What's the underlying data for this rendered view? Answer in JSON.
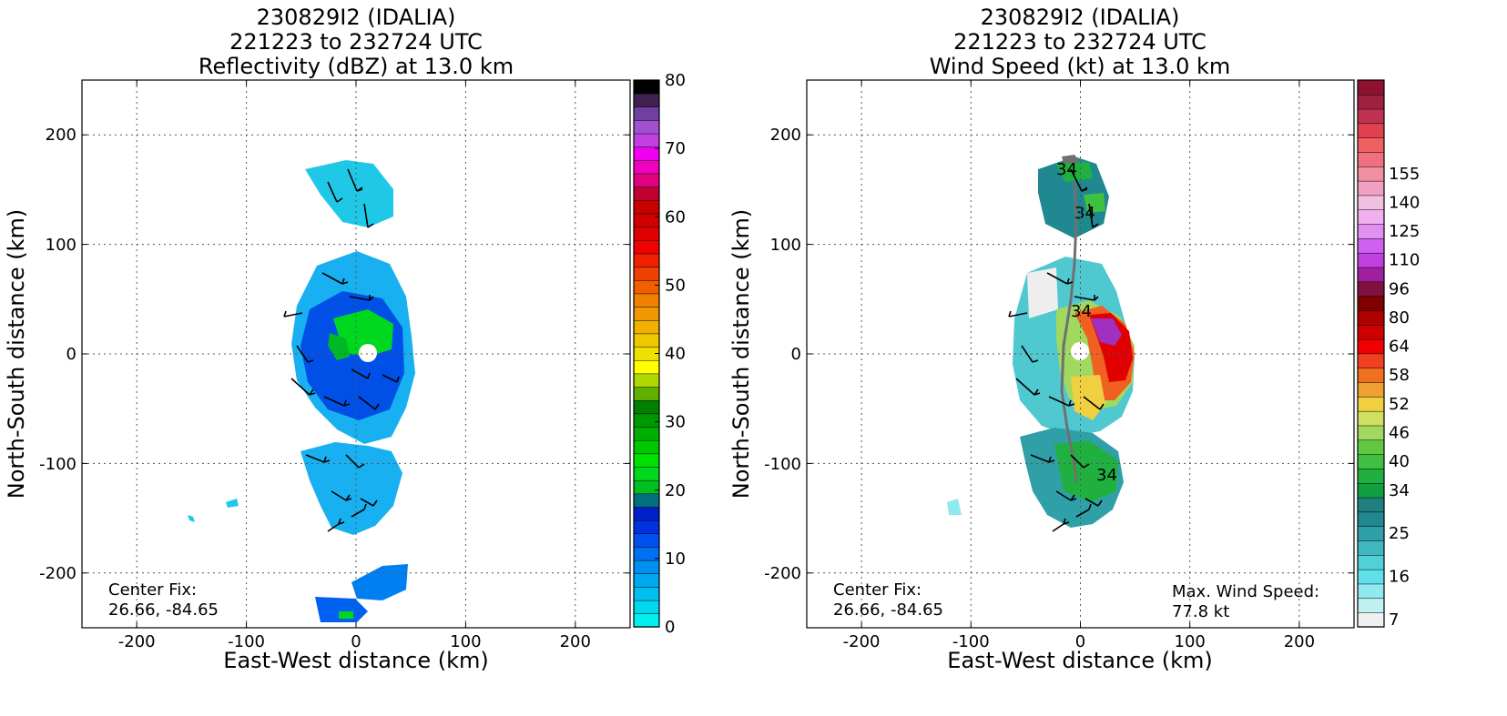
{
  "chart_data": [
    {
      "type": "heatmap",
      "title_lines": [
        "230829I2 (IDALIA)",
        "221223 to 232724 UTC",
        "Reflectivity (dBZ) at 13.0 km"
      ],
      "xlabel": "East-West distance (km)",
      "ylabel": "North-South distance (km)",
      "xlim": [
        -250,
        250
      ],
      "ylim": [
        -250,
        250
      ],
      "xticks": [
        -200,
        -100,
        0,
        100,
        200
      ],
      "yticks": [
        -200,
        -100,
        0,
        100,
        200
      ],
      "grid": true,
      "colorbar": {
        "min": 0,
        "max": 80,
        "tick_values": [
          0,
          10,
          20,
          30,
          40,
          50,
          60,
          70,
          80
        ],
        "colors": [
          "#00f0f0",
          "#00d8f0",
          "#00c0f0",
          "#00a8f0",
          "#0090f0",
          "#0070f0",
          "#0050f0",
          "#0030e0",
          "#0020c8",
          "#007080",
          "#00c020",
          "#00d820",
          "#00e000",
          "#00c800",
          "#00b000",
          "#009800",
          "#008000",
          "#60b000",
          "#b0d800",
          "#ffff00",
          "#f0e000",
          "#f0c800",
          "#f0b000",
          "#f09800",
          "#f08000",
          "#f06000",
          "#f04000",
          "#f02000",
          "#f00000",
          "#e00000",
          "#d00000",
          "#c80000",
          "#c00030",
          "#e00080",
          "#f000c0",
          "#f000f0",
          "#c040e0",
          "#a050d0",
          "#7040a0",
          "#402050",
          "#000000"
        ]
      },
      "annotations": [
        {
          "label": "Center Fix:",
          "value": "26.66, -84.65"
        }
      ]
    },
    {
      "type": "heatmap",
      "title_lines": [
        "230829I2 (IDALIA)",
        "221223 to 232724 UTC",
        "Wind Speed (kt) at 13.0 km"
      ],
      "xlabel": "East-West distance (km)",
      "ylabel": "North-South distance (km)",
      "xlim": [
        -250,
        250
      ],
      "ylim": [
        -250,
        250
      ],
      "xticks": [
        -200,
        -100,
        0,
        100,
        200
      ],
      "yticks": [
        -200,
        -100,
        0,
        100,
        200
      ],
      "grid": true,
      "contour_label": "34",
      "colorbar": {
        "tick_labels": [
          "7",
          "16",
          "25",
          "34",
          "40",
          "46",
          "52",
          "58",
          "64",
          "80",
          "96",
          "110",
          "125",
          "140",
          "155"
        ],
        "tick_band_index": [
          0,
          3,
          6,
          9,
          11,
          13,
          15,
          17,
          19,
          21,
          23,
          25,
          27,
          29,
          31
        ],
        "colors": [
          "#f0f0f0",
          "#c0f0f0",
          "#90e8f0",
          "#60e0e8",
          "#50d0d8",
          "#40b8c0",
          "#30a0a8",
          "#208890",
          "#208080",
          "#10a040",
          "#20b040",
          "#40c040",
          "#60c840",
          "#a0d860",
          "#d0e060",
          "#f0d040",
          "#f0a030",
          "#f07020",
          "#f04020",
          "#f00000",
          "#d00000",
          "#b00000",
          "#800000",
          "#801040",
          "#a020a0",
          "#c040e0",
          "#d060f0",
          "#e090f0",
          "#f0b0f0",
          "#f0c0e0",
          "#f0a0c0",
          "#f090a0",
          "#f07080",
          "#f06060",
          "#e04050",
          "#c03050",
          "#a02040",
          "#901030"
        ]
      },
      "annotations": [
        {
          "label": "Center Fix:",
          "value": "26.66, -84.65"
        },
        {
          "label": "Max. Wind Speed:",
          "value": "77.8 kt"
        }
      ]
    }
  ]
}
